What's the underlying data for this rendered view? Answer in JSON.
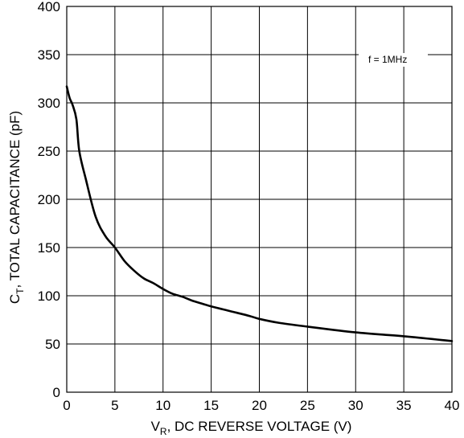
{
  "chart_data": {
    "type": "line",
    "title": "",
    "xlabel": {
      "main": "V",
      "sub": "R",
      "rest": ", DC REVERSE VOLTAGE (V)"
    },
    "ylabel": {
      "main": "C",
      "sub": "T",
      "rest": ", TOTAL CAPACITANCE (pF)"
    },
    "xlim": [
      0,
      40
    ],
    "ylim": [
      0,
      400
    ],
    "xticks": [
      "0",
      "5",
      "10",
      "15",
      "20",
      "25",
      "30",
      "35",
      "40"
    ],
    "yticks": [
      "0",
      "50",
      "100",
      "150",
      "200",
      "250",
      "300",
      "350",
      "400"
    ],
    "grid": true,
    "annotation": "f = 1MHz",
    "series": [
      {
        "x": [
          0,
          0.3,
          0.6,
          1,
          1.3,
          2,
          3,
          4,
          5,
          6,
          7,
          8,
          9,
          10,
          11,
          12,
          13,
          14,
          15,
          17,
          19,
          20,
          22,
          25,
          30,
          35,
          40
        ],
        "y": [
          317,
          305,
          298,
          283,
          250,
          220,
          182,
          162,
          150,
          136,
          126,
          118,
          113,
          107,
          102,
          99,
          95,
          92,
          89,
          84,
          79,
          76,
          72,
          68,
          62,
          58,
          53
        ]
      }
    ]
  }
}
